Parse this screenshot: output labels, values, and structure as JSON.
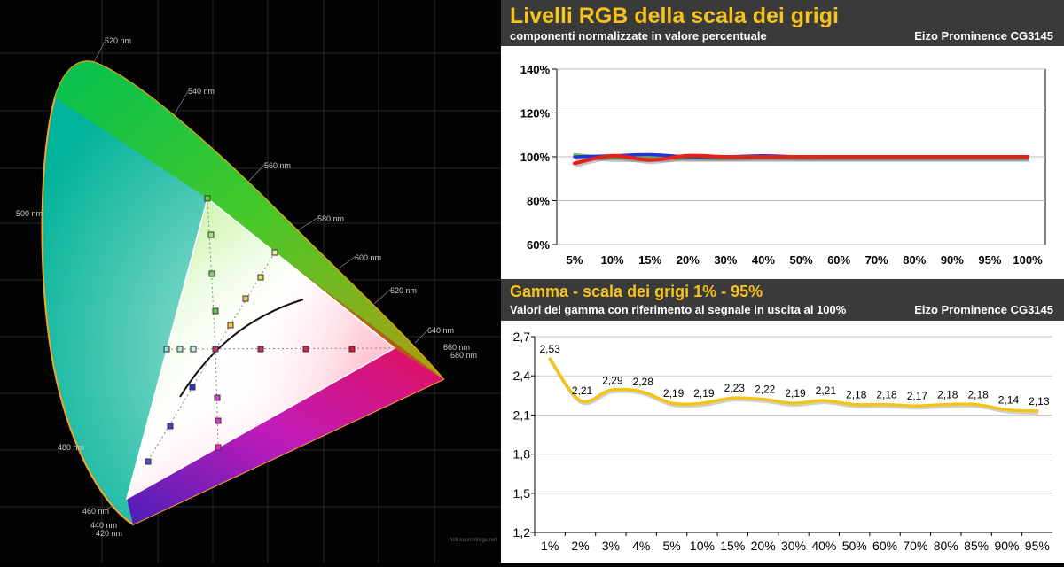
{
  "cie": {
    "wavelength_labels": [
      "520 nm",
      "540 nm",
      "560 nm",
      "580 nm",
      "600 nm",
      "620 nm",
      "640 nm",
      "660 nm",
      "680 nm",
      "500 nm",
      "480 nm",
      "460 nm",
      "440 nm",
      "420 nm"
    ],
    "credit": "hcfr.sourceforge.net"
  },
  "rgb_panel": {
    "title": "Livelli RGB della scala dei grigi",
    "subtitle": "componenti normalizzate in valore percentuale",
    "device": "Eizo Prominence CG3145"
  },
  "gamma_panel": {
    "title": "Gamma - scala dei grigi 1% - 95%",
    "subtitle": "Valori del gamma con riferimento al segnale in uscita al 100%",
    "device": "Eizo Prominence CG3145"
  },
  "chart_data": [
    {
      "type": "line",
      "title": "Livelli RGB della scala dei grigi",
      "categories": [
        "5%",
        "10%",
        "15%",
        "20%",
        "30%",
        "40%",
        "50%",
        "60%",
        "70%",
        "80%",
        "90%",
        "95%",
        "100%"
      ],
      "ylim": [
        60,
        140
      ],
      "yticks": [
        "60%",
        "80%",
        "100%",
        "120%",
        "140%"
      ],
      "grid": true,
      "series": [
        {
          "color": "#7ac943",
          "values": [
            101,
            99.5,
            99.5,
            99.5,
            99.5,
            99.5,
            99.5,
            99.5,
            99.5,
            99.5,
            99.5,
            99.5,
            99.5
          ]
        },
        {
          "color": "#2233dd",
          "values": [
            100,
            100.5,
            101,
            100,
            100,
            100.5,
            100,
            100,
            100,
            100,
            100,
            100,
            100
          ]
        },
        {
          "color": "#e8201a",
          "values": [
            97,
            100.5,
            98.5,
            100.5,
            100,
            100,
            100,
            100,
            100,
            100,
            100,
            100,
            100
          ]
        }
      ]
    },
    {
      "type": "line",
      "title": "Gamma - scala dei grigi 1% - 95%",
      "categories": [
        "1%",
        "2%",
        "3%",
        "4%",
        "5%",
        "10%",
        "15%",
        "20%",
        "30%",
        "40%",
        "50%",
        "60%",
        "70%",
        "80%",
        "85%",
        "90%",
        "95%"
      ],
      "values": [
        2.53,
        2.21,
        2.29,
        2.28,
        2.19,
        2.19,
        2.23,
        2.22,
        2.19,
        2.21,
        2.18,
        2.18,
        2.17,
        2.18,
        2.18,
        2.14,
        2.13
      ],
      "value_labels": [
        "2,53",
        "2,21",
        "2,29",
        "2,28",
        "2,19",
        "2,19",
        "2,23",
        "2,22",
        "2,19",
        "2,21",
        "2,18",
        "2,18",
        "2,17",
        "2,18",
        "2,18",
        "2,14",
        "2,13"
      ],
      "ylim": [
        1.2,
        2.7
      ],
      "yticks": [
        "1,2",
        "1,5",
        "1,8",
        "2,1",
        "2,4",
        "2,7"
      ],
      "grid": true,
      "color": "#f2c418"
    }
  ]
}
